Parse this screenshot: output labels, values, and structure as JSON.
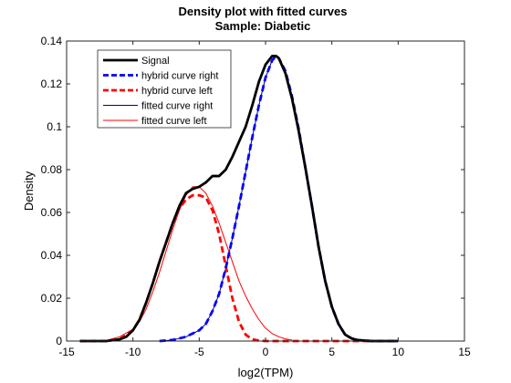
{
  "chart_data": {
    "type": "line",
    "title": "Density plot with fitted curves",
    "subtitle": "Sample: Diabetic",
    "xlabel": "log2(TPM)",
    "ylabel": "Density",
    "xlim": [
      -15,
      15
    ],
    "ylim": [
      0,
      0.14
    ],
    "xticks": [
      -15,
      -10,
      -5,
      0,
      5,
      10,
      15
    ],
    "yticks": [
      0,
      0.02,
      0.04,
      0.06,
      0.08,
      0.1,
      0.12,
      0.14
    ],
    "xtick_labels": [
      "-15",
      "-10",
      "-5",
      "0",
      "5",
      "10",
      "15"
    ],
    "ytick_labels": [
      "0",
      "0.02",
      "0.04",
      "0.06",
      "0.08",
      "0.1",
      "0.12",
      "0.14"
    ],
    "grid": false,
    "legend_position": "top-left",
    "series": [
      {
        "name": "Signal",
        "color": "#000000",
        "style": "solid",
        "weight": "thick",
        "x": [
          -14,
          -12,
          -11,
          -10.5,
          -10,
          -9.5,
          -9,
          -8.5,
          -8,
          -7.5,
          -7,
          -6.5,
          -6,
          -5.5,
          -5,
          -4.5,
          -4,
          -3.5,
          -3,
          -2.5,
          -2,
          -1.5,
          -1,
          -0.5,
          0,
          0.5,
          0.8,
          1,
          1.5,
          2,
          2.5,
          3,
          3.5,
          4,
          4.5,
          5,
          5.5,
          6,
          6.5,
          7,
          8,
          9,
          10
        ],
        "y": [
          0,
          0,
          0.0008,
          0.002,
          0.005,
          0.01,
          0.018,
          0.027,
          0.037,
          0.046,
          0.055,
          0.063,
          0.069,
          0.071,
          0.072,
          0.074,
          0.077,
          0.077,
          0.08,
          0.086,
          0.093,
          0.1,
          0.11,
          0.121,
          0.129,
          0.133,
          0.133,
          0.132,
          0.125,
          0.113,
          0.098,
          0.081,
          0.063,
          0.044,
          0.028,
          0.016,
          0.008,
          0.003,
          0.0012,
          0.0004,
          0,
          0,
          0
        ]
      },
      {
        "name": "hybrid curve right",
        "color": "#0000ff",
        "style": "dashed",
        "weight": "thick",
        "x": [
          -8,
          -7,
          -6,
          -5,
          -4.5,
          -4,
          -3.5,
          -3,
          -2.5,
          -2,
          -1.5,
          -1,
          -0.5,
          0,
          0.5,
          0.8,
          1,
          1.5,
          2,
          2.5,
          3,
          3.5,
          4,
          4.5,
          5,
          5.5,
          6,
          6.5,
          7,
          8,
          10
        ],
        "y": [
          0,
          0.0005,
          0.002,
          0.005,
          0.008,
          0.014,
          0.022,
          0.034,
          0.048,
          0.063,
          0.079,
          0.095,
          0.11,
          0.123,
          0.131,
          0.133,
          0.132,
          0.126,
          0.114,
          0.099,
          0.081,
          0.063,
          0.044,
          0.028,
          0.016,
          0.008,
          0.003,
          0.0012,
          0.0004,
          0,
          0
        ]
      },
      {
        "name": "hybrid curve left",
        "color": "#ff0000",
        "style": "dashed",
        "weight": "thick",
        "x": [
          -14,
          -12,
          -11,
          -10,
          -9.5,
          -9,
          -8.5,
          -8,
          -7.5,
          -7,
          -6.5,
          -6,
          -5.5,
          -5,
          -4.5,
          -4,
          -3.5,
          -3,
          -2.5,
          -2,
          -1.5,
          -1,
          -0.5,
          0,
          2,
          5,
          8
        ],
        "y": [
          0,
          0,
          0.0008,
          0.005,
          0.01,
          0.018,
          0.027,
          0.037,
          0.046,
          0.055,
          0.062,
          0.066,
          0.068,
          0.068,
          0.067,
          0.061,
          0.05,
          0.035,
          0.02,
          0.009,
          0.003,
          0.0008,
          0.0002,
          0,
          0,
          0,
          0
        ]
      },
      {
        "name": "fitted curve right",
        "color": "#000080",
        "style": "solid",
        "weight": "thin",
        "x": [
          -8,
          -7,
          -6,
          -5,
          -4.5,
          -4,
          -3.5,
          -3,
          -2.5,
          -2,
          -1.5,
          -1,
          -0.5,
          0,
          0.5,
          0.8,
          1,
          1.5,
          2,
          2.5,
          3,
          3.5,
          4,
          4.5,
          5,
          5.5,
          6,
          6.5,
          7,
          8,
          10
        ],
        "y": [
          0,
          0.0005,
          0.002,
          0.005,
          0.008,
          0.014,
          0.022,
          0.034,
          0.048,
          0.063,
          0.079,
          0.095,
          0.11,
          0.123,
          0.131,
          0.133,
          0.132,
          0.126,
          0.114,
          0.099,
          0.081,
          0.063,
          0.044,
          0.028,
          0.016,
          0.008,
          0.003,
          0.0012,
          0.0004,
          0,
          0
        ]
      },
      {
        "name": "fitted curve left",
        "color": "#ff0000",
        "style": "solid",
        "weight": "thin",
        "x": [
          -12,
          -11,
          -10,
          -9.5,
          -9,
          -8.5,
          -8,
          -7.5,
          -7,
          -6.5,
          -6,
          -5.5,
          -5,
          -4.5,
          -4,
          -3.5,
          -3,
          -2.5,
          -2,
          -1.5,
          -1,
          -0.5,
          0,
          0.5,
          1,
          1.5,
          2
        ],
        "y": [
          0.0003,
          0.002,
          0.0055,
          0.009,
          0.015,
          0.023,
          0.032,
          0.042,
          0.052,
          0.061,
          0.068,
          0.072,
          0.072,
          0.069,
          0.063,
          0.055,
          0.046,
          0.037,
          0.028,
          0.021,
          0.015,
          0.01,
          0.006,
          0.0035,
          0.002,
          0.001,
          0.0005
        ]
      }
    ]
  }
}
